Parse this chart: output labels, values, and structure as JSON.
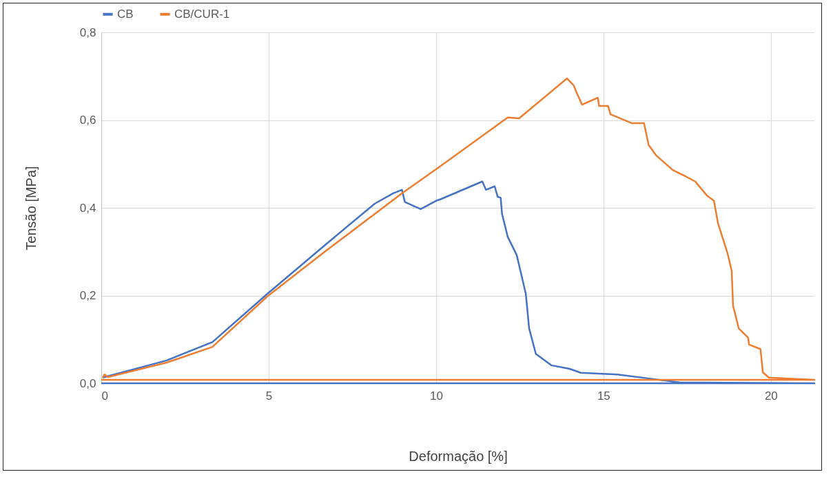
{
  "chart_data": {
    "type": "line",
    "xlabel": "Deformação [%]",
    "ylabel": "Tensão [MPa]",
    "xlim": [
      0,
      21.3
    ],
    "xticks": [
      0,
      5,
      10,
      15,
      20
    ],
    "ylim": [
      0,
      0.8
    ],
    "yticks": [
      {
        "value": 0,
        "label": "0,0"
      },
      {
        "value": 0.2,
        "label": "0,2"
      },
      {
        "value": 0.4,
        "label": "0,4"
      },
      {
        "value": 0.6,
        "label": "0,6"
      },
      {
        "value": 0.8,
        "label": "0,8"
      }
    ],
    "grid": true,
    "legend": "top",
    "marker": "none",
    "line_style": "solid",
    "series": [
      {
        "name": "CB",
        "color": "#4472c4",
        "x": [
          0.04,
          1.95,
          3.32,
          4.96,
          6.73,
          8.16,
          8.72,
          8.98,
          9.07,
          9.54,
          10.0,
          10.15,
          11.38,
          11.49,
          11.75,
          11.84,
          11.93,
          11.97,
          12.14,
          12.41,
          12.68,
          12.78,
          12.98,
          13.44,
          13.99,
          14.32,
          15.42,
          16.45,
          17.27,
          21.3,
          0
        ],
        "values": [
          0.013,
          0.052,
          0.094,
          0.204,
          0.318,
          0.409,
          0.433,
          0.441,
          0.413,
          0.397,
          0.416,
          0.42,
          0.46,
          0.441,
          0.449,
          0.425,
          0.423,
          0.386,
          0.334,
          0.292,
          0.204,
          0.125,
          0.067,
          0.041,
          0.033,
          0.024,
          0.02,
          0.01,
          0.002,
          0,
          0
        ]
      },
      {
        "name": "CB/CUR-1",
        "color": "#ed7d31",
        "x": [
          0.04,
          0.1,
          0.2,
          1.95,
          3.32,
          4.96,
          6.73,
          8.98,
          10.15,
          12.14,
          12.48,
          13.91,
          14.11,
          14.19,
          14.36,
          14.83,
          14.87,
          15.14,
          15.21,
          15.84,
          16.21,
          16.35,
          16.58,
          17.07,
          17.47,
          17.74,
          18.09,
          18.3,
          18.42,
          18.7,
          18.83,
          18.87,
          19.04,
          19.32,
          19.35,
          19.69,
          19.76,
          19.94,
          21.3,
          0
        ],
        "values": [
          0.013,
          0.02,
          0.014,
          0.047,
          0.083,
          0.198,
          0.303,
          0.433,
          0.496,
          0.606,
          0.604,
          0.695,
          0.679,
          0.664,
          0.635,
          0.651,
          0.632,
          0.632,
          0.613,
          0.593,
          0.593,
          0.543,
          0.519,
          0.486,
          0.471,
          0.46,
          0.428,
          0.416,
          0.365,
          0.298,
          0.256,
          0.177,
          0.125,
          0.104,
          0.088,
          0.078,
          0.025,
          0.013,
          0.008,
          0.008
        ]
      }
    ]
  }
}
